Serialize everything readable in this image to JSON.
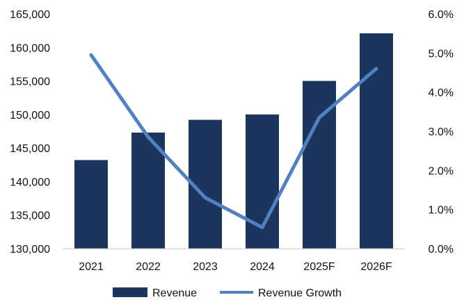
{
  "chart_data": {
    "type": "bar",
    "categories": [
      "2021",
      "2022",
      "2023",
      "2024",
      "2025F",
      "2026F"
    ],
    "series": [
      {
        "name": "Revenue",
        "type": "bar",
        "axis": "left",
        "values": [
          143200,
          147300,
          149200,
          150000,
          155000,
          162100
        ],
        "color": "#1b355d"
      },
      {
        "name": "Revenue Growth",
        "type": "line",
        "axis": "right",
        "values": [
          0.0495,
          0.0285,
          0.013,
          0.0054,
          0.0335,
          0.046
        ],
        "color": "#5181c0"
      }
    ],
    "y_left": {
      "min": 130000,
      "max": 165000,
      "ticks": [
        "130,000",
        "135,000",
        "140,000",
        "145,000",
        "150,000",
        "155,000",
        "160,000",
        "165,000"
      ]
    },
    "y_right": {
      "min": 0,
      "max": 0.06,
      "ticks": [
        "0.0%",
        "1.0%",
        "2.0%",
        "3.0%",
        "4.0%",
        "5.0%",
        "6.0%"
      ]
    },
    "grid": false,
    "legend": {
      "position": "bottom",
      "items": [
        "Revenue",
        "Revenue Growth"
      ]
    }
  }
}
